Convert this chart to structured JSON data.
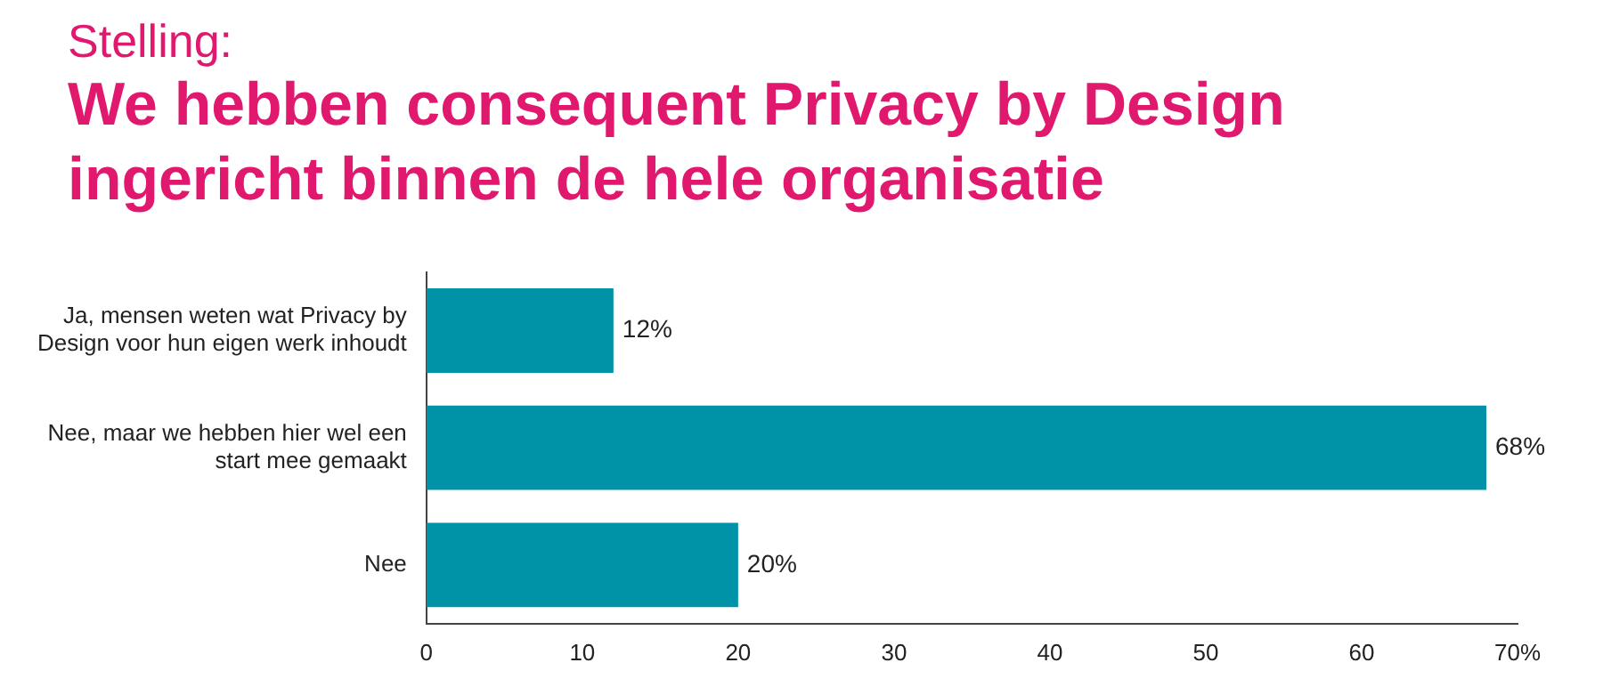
{
  "chart_data": {
    "type": "bar",
    "orientation": "horizontal",
    "subtitle": "Stelling:",
    "title": "We hebben consequent Privacy by Design ingericht binnen de hele organisatie",
    "categories": [
      "Ja, mensen weten wat Privacy by Design voor hun eigen werk inhoudt",
      "Nee, maar we hebben hier wel een start mee gemaakt",
      "Nee"
    ],
    "values": [
      12,
      68,
      20
    ],
    "value_labels": [
      "12%",
      "68%",
      "20%"
    ],
    "color": "#0093a8",
    "xlim": [
      0,
      70
    ],
    "xticks": [
      0,
      10,
      20,
      30,
      40,
      50,
      60,
      {
        "value": 70,
        "label": "70%"
      }
    ],
    "grid": false,
    "legend": false
  }
}
